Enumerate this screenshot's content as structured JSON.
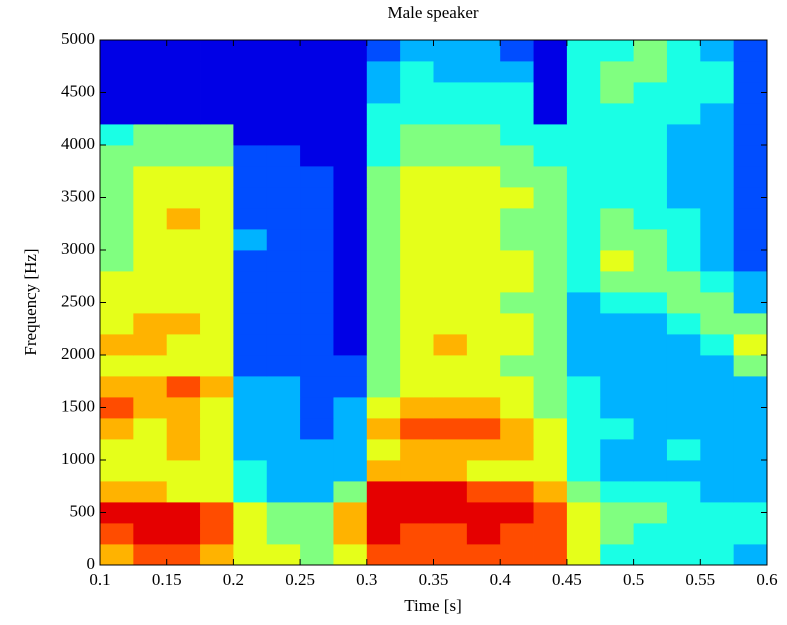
{
  "chart_data": {
    "type": "heatmap",
    "title": "Male speaker",
    "xlabel": "Time [s]",
    "ylabel": "Frequency [Hz]",
    "colormap": "jet",
    "zlim": [
      0,
      10
    ],
    "xlim": [
      0.1,
      0.6
    ],
    "ylim": [
      0,
      5000
    ],
    "xticks": [
      0.1,
      0.15,
      0.2,
      0.25,
      0.3,
      0.35,
      0.4,
      0.45,
      0.5,
      0.55,
      0.6
    ],
    "yticks": [
      0,
      500,
      1000,
      1500,
      2000,
      2500,
      3000,
      3500,
      4000,
      4500,
      5000
    ],
    "xbins": [
      0.1,
      0.125,
      0.15,
      0.175,
      0.2,
      0.225,
      0.25,
      0.275,
      0.3,
      0.325,
      0.35,
      0.375,
      0.4,
      0.425,
      0.45,
      0.475,
      0.5,
      0.525,
      0.55,
      0.575,
      0.6
    ],
    "ybins": [
      0,
      200,
      400,
      600,
      800,
      1000,
      1200,
      1400,
      1600,
      1800,
      2000,
      2200,
      2400,
      2600,
      2800,
      3000,
      3200,
      3400,
      3600,
      3800,
      4000,
      4200,
      4400,
      4600,
      4800,
      5000
    ],
    "z": [
      [
        7,
        8,
        8,
        7,
        6,
        6,
        5,
        6,
        8,
        8,
        8,
        8,
        8,
        8,
        6,
        4,
        4,
        4,
        4,
        3
      ],
      [
        8,
        9,
        9,
        8,
        6,
        5,
        5,
        7,
        9,
        8,
        8,
        9,
        8,
        8,
        6,
        5,
        4,
        4,
        4,
        4
      ],
      [
        9,
        9,
        9,
        8,
        6,
        5,
        5,
        7,
        9,
        9,
        9,
        9,
        9,
        8,
        6,
        5,
        5,
        4,
        4,
        4
      ],
      [
        7,
        7,
        6,
        6,
        4,
        3,
        3,
        5,
        9,
        9,
        9,
        8,
        8,
        7,
        5,
        4,
        4,
        4,
        3,
        3
      ],
      [
        6,
        6,
        6,
        6,
        4,
        3,
        3,
        3,
        7,
        7,
        7,
        6,
        6,
        6,
        4,
        3,
        3,
        3,
        3,
        3
      ],
      [
        6,
        6,
        7,
        6,
        3,
        3,
        3,
        3,
        6,
        7,
        7,
        7,
        7,
        6,
        4,
        3,
        3,
        4,
        3,
        3
      ],
      [
        7,
        6,
        7,
        6,
        3,
        3,
        2,
        3,
        7,
        8,
        8,
        8,
        7,
        6,
        4,
        4,
        3,
        3,
        3,
        3
      ],
      [
        8,
        7,
        7,
        6,
        3,
        3,
        2,
        3,
        6,
        7,
        7,
        7,
        6,
        5,
        4,
        3,
        3,
        3,
        3,
        3
      ],
      [
        7,
        7,
        8,
        7,
        3,
        3,
        2,
        2,
        5,
        6,
        6,
        6,
        6,
        5,
        4,
        3,
        3,
        3,
        3,
        3
      ],
      [
        6,
        6,
        6,
        6,
        2,
        2,
        2,
        2,
        5,
        6,
        6,
        6,
        5,
        5,
        3,
        3,
        3,
        3,
        3,
        5
      ],
      [
        7,
        7,
        6,
        6,
        2,
        2,
        2,
        1,
        5,
        6,
        7,
        6,
        6,
        5,
        3,
        3,
        3,
        3,
        4,
        6
      ],
      [
        6,
        7,
        7,
        6,
        2,
        2,
        2,
        1,
        5,
        6,
        6,
        6,
        6,
        5,
        3,
        3,
        3,
        4,
        5,
        5
      ],
      [
        6,
        6,
        6,
        6,
        2,
        2,
        2,
        1,
        5,
        6,
        6,
        6,
        5,
        5,
        3,
        4,
        4,
        5,
        5,
        3
      ],
      [
        6,
        6,
        6,
        6,
        2,
        2,
        2,
        1,
        5,
        6,
        6,
        6,
        6,
        5,
        4,
        5,
        5,
        5,
        4,
        3
      ],
      [
        5,
        6,
        6,
        6,
        2,
        2,
        2,
        1,
        5,
        6,
        6,
        6,
        6,
        5,
        4,
        6,
        5,
        4,
        3,
        2
      ],
      [
        5,
        6,
        6,
        6,
        3,
        2,
        2,
        1,
        5,
        6,
        6,
        6,
        5,
        5,
        4,
        5,
        5,
        4,
        3,
        2
      ],
      [
        5,
        6,
        7,
        6,
        2,
        2,
        2,
        1,
        5,
        6,
        6,
        6,
        5,
        5,
        4,
        5,
        4,
        4,
        3,
        2
      ],
      [
        5,
        6,
        6,
        6,
        2,
        2,
        2,
        1,
        5,
        6,
        6,
        6,
        6,
        5,
        4,
        4,
        4,
        3,
        3,
        2
      ],
      [
        5,
        6,
        6,
        6,
        2,
        2,
        2,
        1,
        5,
        6,
        6,
        6,
        5,
        5,
        4,
        4,
        4,
        3,
        3,
        2
      ],
      [
        5,
        5,
        5,
        5,
        2,
        2,
        1,
        1,
        4,
        5,
        5,
        5,
        5,
        4,
        4,
        4,
        4,
        3,
        3,
        2
      ],
      [
        4,
        5,
        5,
        5,
        1,
        1,
        1,
        1,
        4,
        5,
        5,
        5,
        4,
        4,
        4,
        4,
        4,
        3,
        3,
        2
      ],
      [
        1,
        1,
        1,
        1,
        1,
        1,
        1,
        1,
        4,
        4,
        4,
        4,
        4,
        1,
        4,
        4,
        4,
        4,
        3,
        2
      ],
      [
        1,
        1,
        1,
        1,
        1,
        1,
        1,
        1,
        3,
        4,
        4,
        4,
        4,
        1,
        4,
        5,
        4,
        4,
        4,
        2
      ],
      [
        1,
        1,
        1,
        1,
        1,
        1,
        1,
        1,
        3,
        4,
        3,
        3,
        3,
        1,
        4,
        5,
        5,
        4,
        4,
        2
      ],
      [
        1,
        1,
        1,
        1,
        1,
        1,
        1,
        1,
        2,
        3,
        3,
        3,
        2,
        1,
        4,
        4,
        5,
        4,
        3,
        2
      ]
    ]
  }
}
